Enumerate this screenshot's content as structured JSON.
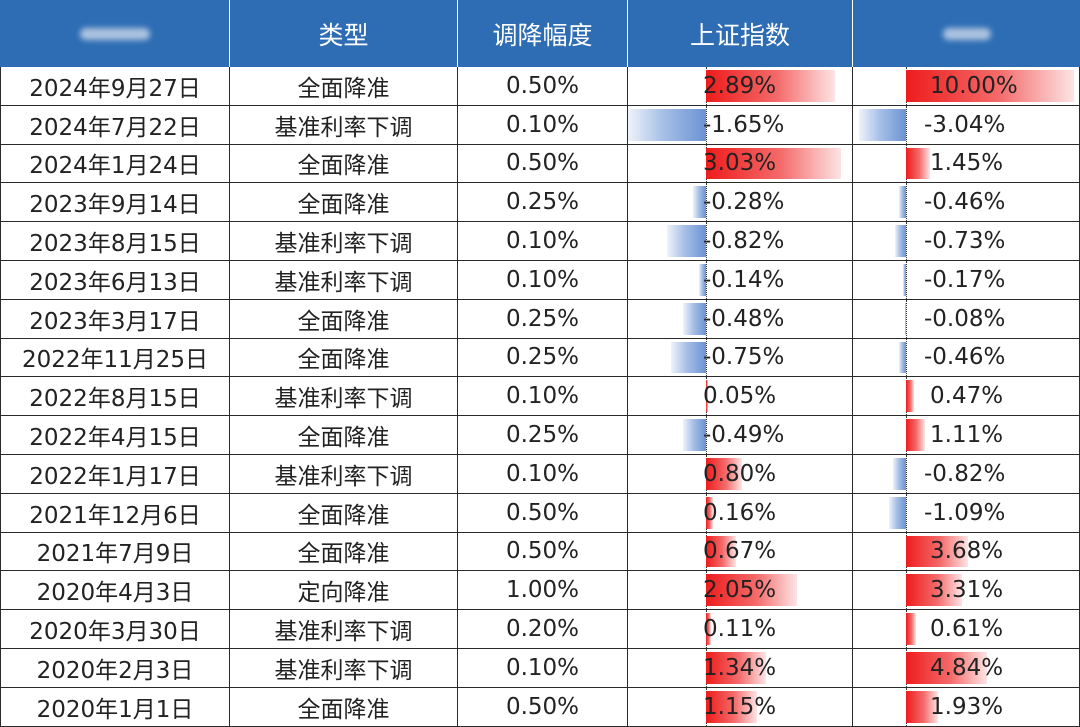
{
  "header": {
    "col_date": "",
    "col_type": "类型",
    "col_cut": "调降幅度",
    "col_sh": "上证指数",
    "col_other": ""
  },
  "colors": {
    "header_bg": "#2e6db4",
    "positive_bar": "#ee1c1c",
    "negative_bar": "#6b93d4"
  },
  "rows": [
    {
      "date": "2024年9月27日",
      "type": "全面降准",
      "cut": "0.50%",
      "sh": "2.89%",
      "sh_value": 2.89,
      "other": "10.00%",
      "other_value": 10.0
    },
    {
      "date": "2024年7月22日",
      "type": "基准利率下调",
      "cut": "0.10%",
      "sh": "-1.65%",
      "sh_value": -1.65,
      "other": "-3.04%",
      "other_value": -3.04
    },
    {
      "date": "2024年1月24日",
      "type": "全面降准",
      "cut": "0.50%",
      "sh": "3.03%",
      "sh_value": 3.03,
      "other": "1.45%",
      "other_value": 1.45
    },
    {
      "date": "2023年9月14日",
      "type": "全面降准",
      "cut": "0.25%",
      "sh": "-0.28%",
      "sh_value": -0.28,
      "other": "-0.46%",
      "other_value": -0.46
    },
    {
      "date": "2023年8月15日",
      "type": "基准利率下调",
      "cut": "0.10%",
      "sh": "-0.82%",
      "sh_value": -0.82,
      "other": "-0.73%",
      "other_value": -0.73
    },
    {
      "date": "2023年6月13日",
      "type": "基准利率下调",
      "cut": "0.10%",
      "sh": "-0.14%",
      "sh_value": -0.14,
      "other": "-0.17%",
      "other_value": -0.17
    },
    {
      "date": "2023年3月17日",
      "type": "全面降准",
      "cut": "0.25%",
      "sh": "-0.48%",
      "sh_value": -0.48,
      "other": "-0.08%",
      "other_value": -0.08
    },
    {
      "date": "2022年11月25日",
      "type": "全面降准",
      "cut": "0.25%",
      "sh": "-0.75%",
      "sh_value": -0.75,
      "other": "-0.46%",
      "other_value": -0.46
    },
    {
      "date": "2022年8月15日",
      "type": "基准利率下调",
      "cut": "0.10%",
      "sh": "0.05%",
      "sh_value": 0.05,
      "other": "0.47%",
      "other_value": 0.47
    },
    {
      "date": "2022年4月15日",
      "type": "全面降准",
      "cut": "0.25%",
      "sh": "-0.49%",
      "sh_value": -0.49,
      "other": "1.11%",
      "other_value": 1.11
    },
    {
      "date": "2022年1月17日",
      "type": "基准利率下调",
      "cut": "0.10%",
      "sh": "0.80%",
      "sh_value": 0.8,
      "other": "-0.82%",
      "other_value": -0.82
    },
    {
      "date": "2021年12月6日",
      "type": "全面降准",
      "cut": "0.50%",
      "sh": "0.16%",
      "sh_value": 0.16,
      "other": "-1.09%",
      "other_value": -1.09
    },
    {
      "date": "2021年7月9日",
      "type": "全面降准",
      "cut": "0.50%",
      "sh": "0.67%",
      "sh_value": 0.67,
      "other": "3.68%",
      "other_value": 3.68
    },
    {
      "date": "2020年4月3日",
      "type": "定向降准",
      "cut": "1.00%",
      "sh": "2.05%",
      "sh_value": 2.05,
      "other": "3.31%",
      "other_value": 3.31
    },
    {
      "date": "2020年3月30日",
      "type": "基准利率下调",
      "cut": "0.20%",
      "sh": "0.11%",
      "sh_value": 0.11,
      "other": "0.61%",
      "other_value": 0.61
    },
    {
      "date": "2020年2月3日",
      "type": "基准利率下调",
      "cut": "0.10%",
      "sh": "1.34%",
      "sh_value": 1.34,
      "other": "4.84%",
      "other_value": 4.84
    },
    {
      "date": "2020年1月1日",
      "type": "全面降准",
      "cut": "0.50%",
      "sh": "1.15%",
      "sh_value": 1.15,
      "other": "1.93%",
      "other_value": 1.93
    }
  ]
}
